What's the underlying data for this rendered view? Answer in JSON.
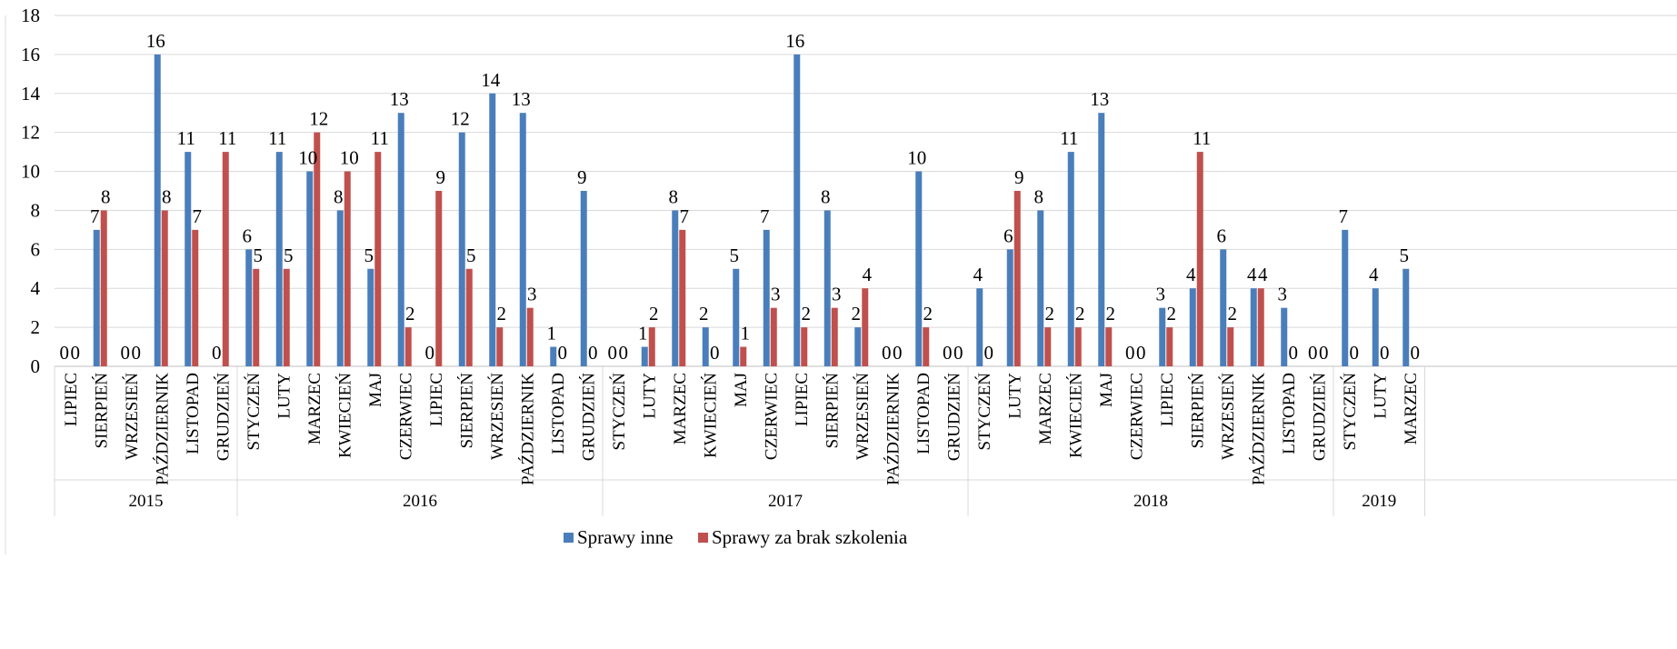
{
  "chart_data": {
    "type": "bar",
    "ylim": [
      0,
      18
    ],
    "yticks": [
      0,
      2,
      4,
      6,
      8,
      10,
      12,
      14,
      16,
      18
    ],
    "grid": true,
    "legend_position": "bottom",
    "groups": [
      {
        "year": "2015",
        "months": [
          "LIPIEC",
          "SIERPIEŃ",
          "WRZESIEŃ",
          "PAŹDZIERNIK",
          "LISTOPAD",
          "GRUDZIEŃ"
        ]
      },
      {
        "year": "2016",
        "months": [
          "STYCZEŃ",
          "LUTY",
          "MARZEC",
          "KWIECIEŃ",
          "MAJ",
          "CZERWIEC",
          "LIPIEC",
          "SIERPIEŃ",
          "WRZESIEŃ",
          "PAŹDZIERNIK",
          "LISTOPAD",
          "GRUDZIEŃ"
        ]
      },
      {
        "year": "2017",
        "months": [
          "STYCZEŃ",
          "LUTY",
          "MARZEC",
          "KWIECIEŃ",
          "MAJ",
          "CZERWIEC",
          "LIPIEC",
          "SIERPIEŃ",
          "WRZESIEŃ",
          "PAŹDZIERNIK",
          "LISTOPAD",
          "GRUDZIEŃ"
        ]
      },
      {
        "year": "2018",
        "months": [
          "STYCZEŃ",
          "LUTY",
          "MARZEC",
          "KWIECIEŃ",
          "MAJ",
          "CZERWIEC",
          "LIPIEC",
          "SIERPIEŃ",
          "WRZESIEŃ",
          "PAŹDZIERNIK",
          "LISTOPAD",
          "GRUDZIEŃ"
        ]
      },
      {
        "year": "2019",
        "months": [
          "STYCZEŃ",
          "LUTY",
          "MARZEC"
        ]
      }
    ],
    "series": [
      {
        "name": "Sprawy inne",
        "color": "#4a7ebb",
        "values": [
          0,
          7,
          0,
          16,
          11,
          0,
          6,
          11,
          10,
          8,
          5,
          13,
          0,
          12,
          14,
          13,
          1,
          9,
          0,
          1,
          8,
          2,
          5,
          7,
          16,
          8,
          2,
          0,
          10,
          0,
          4,
          6,
          8,
          11,
          13,
          0,
          3,
          4,
          6,
          4,
          3,
          0,
          7,
          4,
          5
        ]
      },
      {
        "name": "Sprawy za brak szkolenia",
        "color": "#c0504d",
        "values": [
          0,
          8,
          0,
          8,
          7,
          11,
          5,
          5,
          12,
          10,
          11,
          2,
          9,
          5,
          2,
          3,
          0,
          0,
          0,
          2,
          7,
          0,
          1,
          3,
          2,
          3,
          4,
          0,
          2,
          0,
          0,
          9,
          2,
          2,
          2,
          0,
          2,
          11,
          2,
          4,
          0,
          0,
          0,
          0,
          0
        ]
      }
    ]
  }
}
